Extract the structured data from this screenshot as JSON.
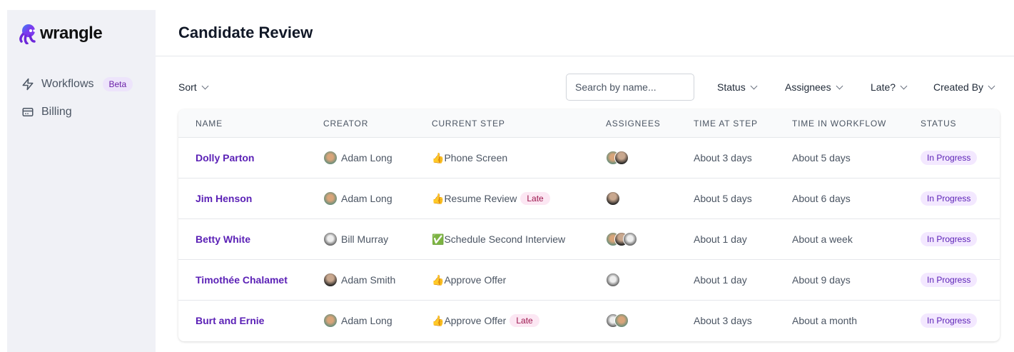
{
  "sidebar": {
    "logo": "wrangle",
    "items": [
      {
        "label": "Workflows",
        "badge": "Beta",
        "icon": "lightning-icon"
      },
      {
        "label": "Billing",
        "icon": "credit-card-icon"
      }
    ]
  },
  "header": {
    "title": "Candidate Review"
  },
  "toolbar": {
    "sort": "Sort",
    "search_placeholder": "Search by name...",
    "filters": [
      "Status",
      "Assignees",
      "Late?",
      "Created By"
    ]
  },
  "table": {
    "columns": [
      "NAME",
      "CREATOR",
      "CURRENT STEP",
      "ASSIGNEES",
      "TIME AT STEP",
      "TIME IN WORKFLOW",
      "STATUS"
    ],
    "rows": [
      {
        "name": "Dolly Parton",
        "creator": "Adam Long",
        "step_icon": "👍",
        "step": "Phone Screen",
        "late": "",
        "assignees": [
          "a1",
          "a2"
        ],
        "time_step": "About 3 days",
        "time_wf": "About 5 days",
        "status": "In Progress"
      },
      {
        "name": "Jim Henson",
        "creator": "Adam Long",
        "step_icon": "👍",
        "step": "Resume Review",
        "late": "Late",
        "assignees": [
          "a2"
        ],
        "time_step": "About 5 days",
        "time_wf": "About 6 days",
        "status": "In Progress"
      },
      {
        "name": "Betty White",
        "creator": "Bill Murray",
        "step_icon": "✅",
        "step": "Schedule Second Interview",
        "late": "",
        "assignees": [
          "a1",
          "a2",
          "a3"
        ],
        "time_step": "About 1 day",
        "time_wf": "About a week",
        "status": "In Progress"
      },
      {
        "name": "Timothée Chalamet",
        "creator": "Adam Smith",
        "step_icon": "👍",
        "step": "Approve Offer",
        "late": "",
        "assignees": [
          "a3"
        ],
        "time_step": "About 1 day",
        "time_wf": "About 9 days",
        "status": "In Progress"
      },
      {
        "name": "Burt and Ernie",
        "creator": "Adam Long",
        "step_icon": "👍",
        "step": "Approve Offer",
        "late": "Late",
        "assignees": [
          "a3",
          "a1"
        ],
        "time_step": "About 3 days",
        "time_wf": "About a month",
        "status": "In Progress"
      }
    ]
  },
  "creator_avatars": {
    "Adam Long": "a1",
    "Bill Murray": "a3",
    "Adam Smith": "a2"
  }
}
